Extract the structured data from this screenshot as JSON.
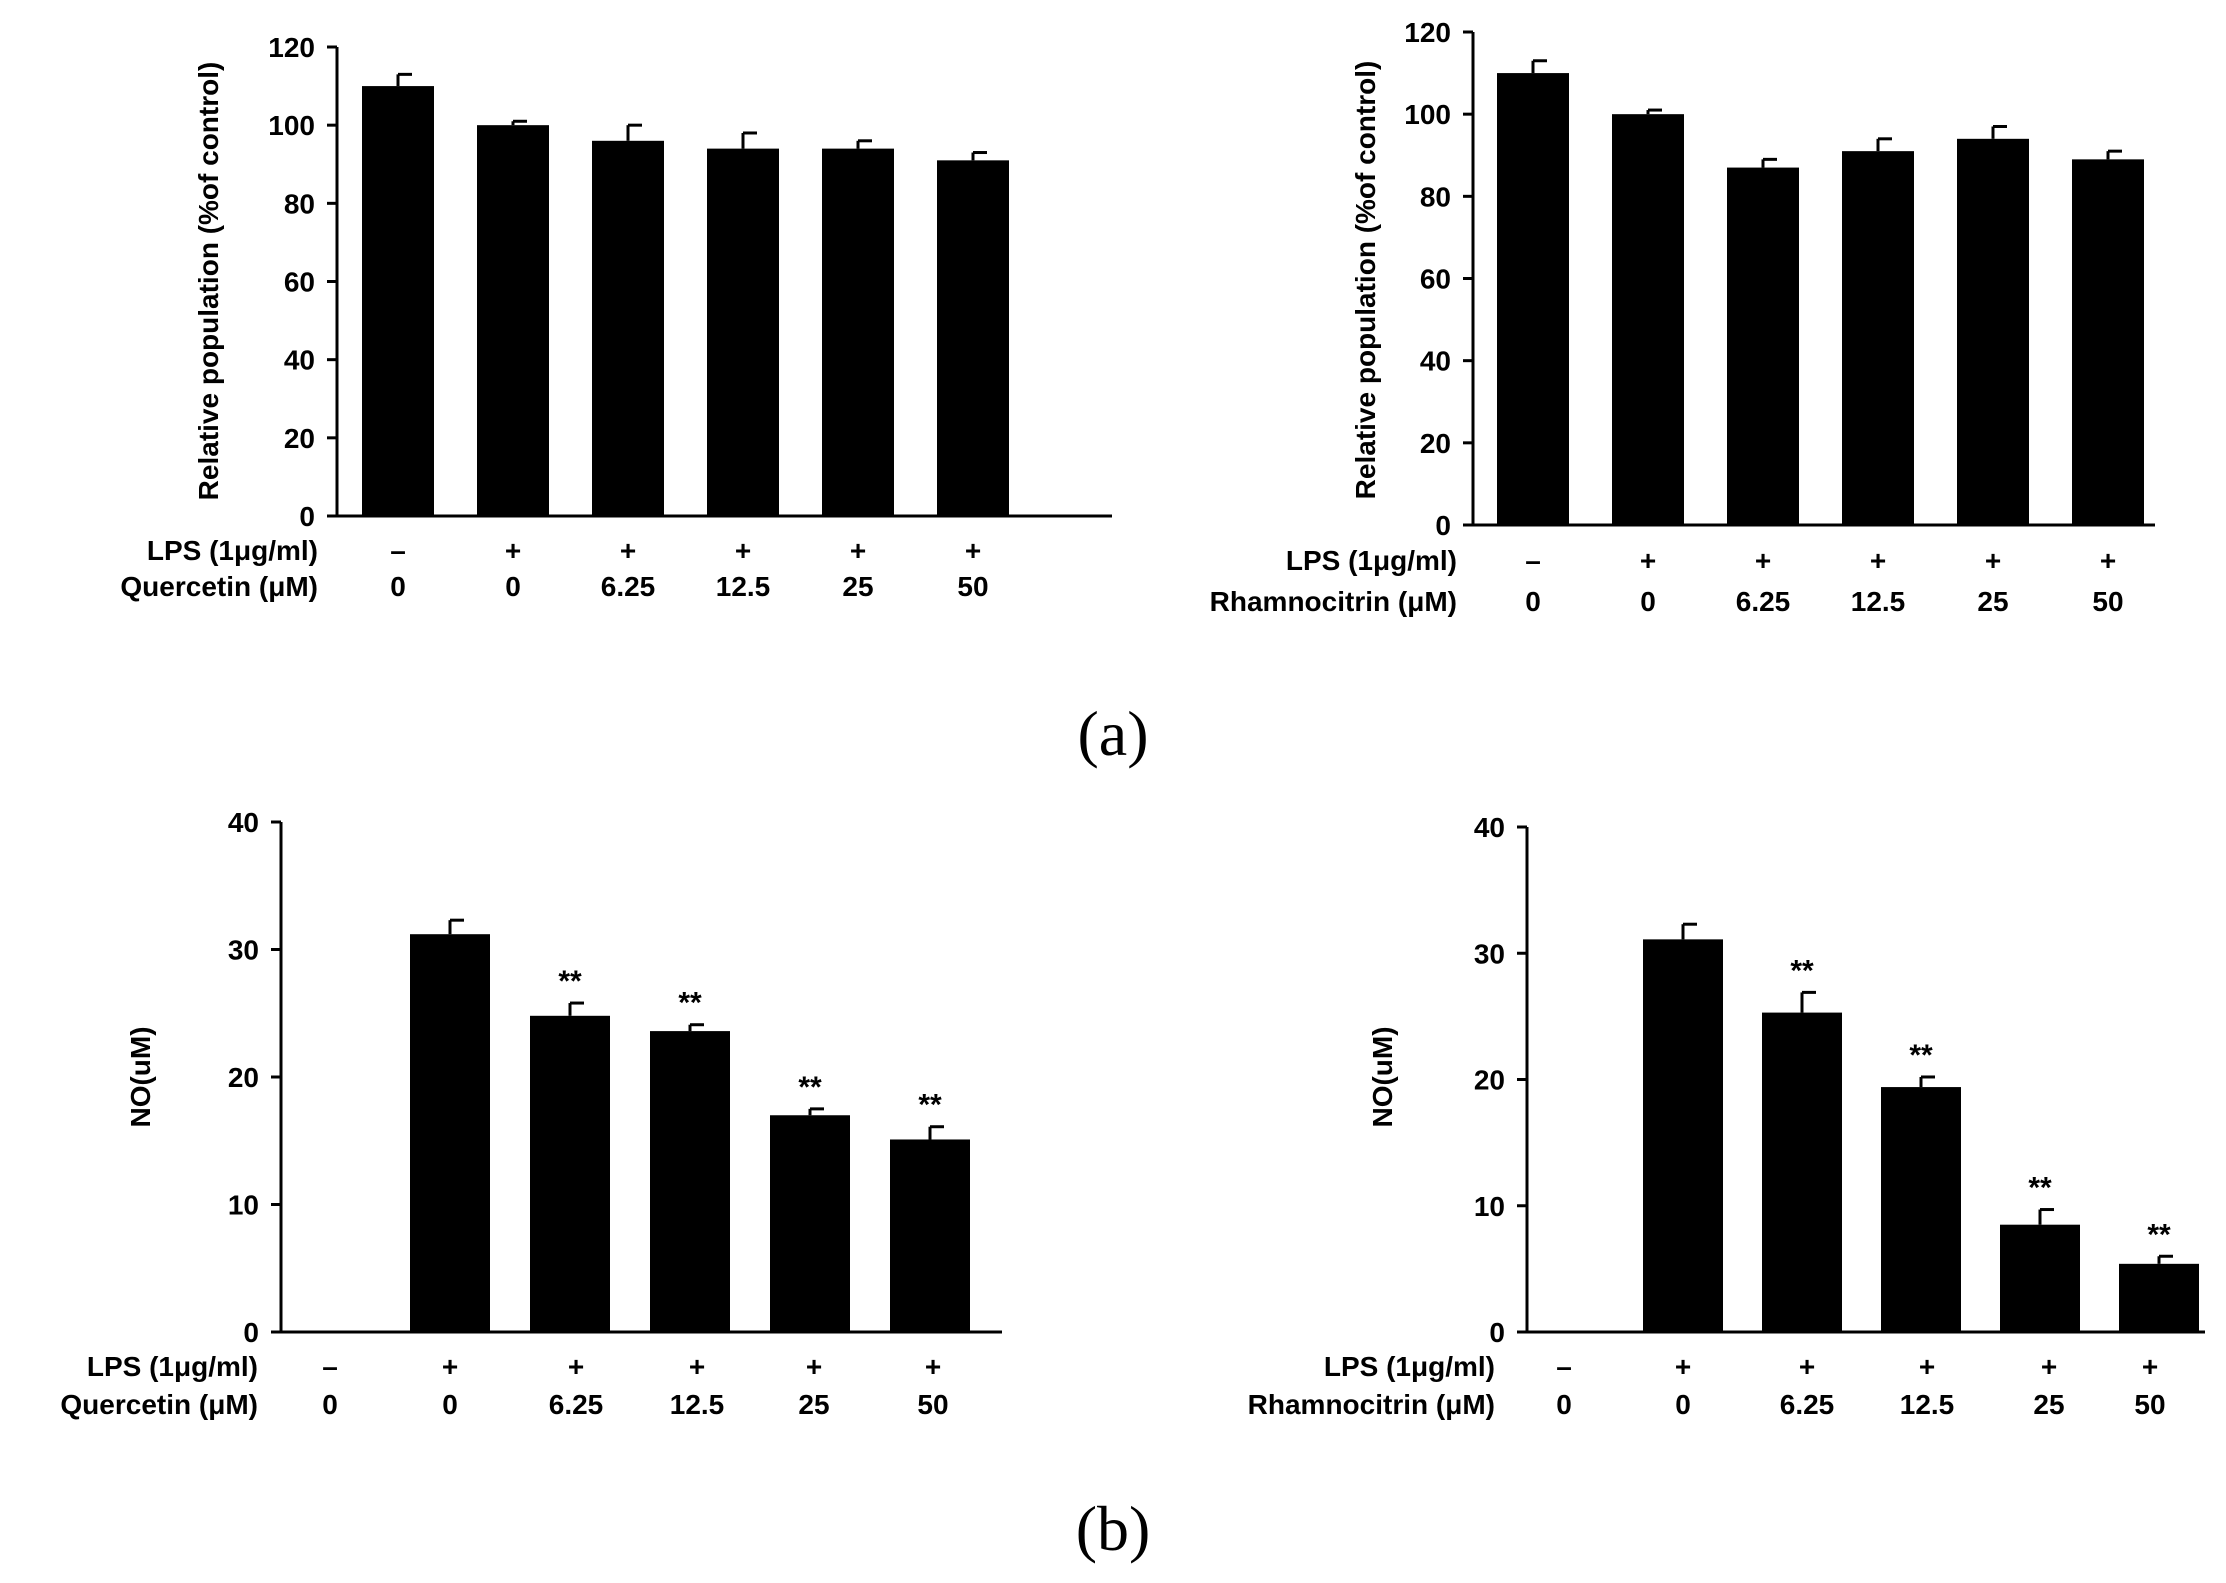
{
  "colors": {
    "bar": "#000000",
    "axis": "#000000",
    "background": "#ffffff"
  },
  "captions": {
    "a": "(a)",
    "b": "(b)"
  },
  "chart_data": [
    {
      "id": "a-left",
      "type": "bar",
      "panel": "a",
      "ylabel": "Relative population (%of control)",
      "ylim": [
        0,
        120
      ],
      "yticks": [
        0,
        20,
        40,
        60,
        80,
        100,
        120
      ],
      "row1_label": "LPS (1μg/ml)",
      "row2_label": "Quercetin (μM)",
      "row1": [
        "–",
        "+",
        "+",
        "+",
        "+",
        "+"
      ],
      "row2": [
        "0",
        "0",
        "6.25",
        "12.5",
        "25",
        "50"
      ],
      "values": [
        110,
        100,
        96,
        94,
        94,
        91
      ],
      "errors": [
        3,
        1,
        4,
        4,
        2,
        2
      ],
      "significance": [
        "",
        "",
        "",
        "",
        "",
        ""
      ]
    },
    {
      "id": "a-right",
      "type": "bar",
      "panel": "a",
      "ylabel": "Relative population (%of control)",
      "ylim": [
        0,
        120
      ],
      "yticks": [
        0,
        20,
        40,
        60,
        80,
        100,
        120
      ],
      "row1_label": "LPS (1μg/ml)",
      "row2_label": "Rhamnocitrin (μM)",
      "row1": [
        "–",
        "+",
        "+",
        "+",
        "+",
        "+"
      ],
      "row2": [
        "0",
        "0",
        "6.25",
        "12.5",
        "25",
        "50"
      ],
      "values": [
        110,
        100,
        87,
        91,
        94,
        89
      ],
      "errors": [
        3,
        1,
        2,
        3,
        3,
        2
      ],
      "significance": [
        "",
        "",
        "",
        "",
        "",
        ""
      ]
    },
    {
      "id": "b-left",
      "type": "bar",
      "panel": "b",
      "ylabel": "NO(uM)",
      "ylim": [
        0,
        40
      ],
      "yticks": [
        0,
        10,
        20,
        30,
        40
      ],
      "row1_label": "LPS (1μg/ml)",
      "row2_label": "Quercetin (μM)",
      "row1": [
        "–",
        "+",
        "+",
        "+",
        "+",
        "+"
      ],
      "row2": [
        "0",
        "0",
        "6.25",
        "12.5",
        "25",
        "50"
      ],
      "values": [
        0,
        31.2,
        24.8,
        23.6,
        17.0,
        15.1
      ],
      "errors": [
        0,
        1.1,
        1.0,
        0.5,
        0.5,
        1.0
      ],
      "significance": [
        "",
        "",
        "**",
        "**",
        "**",
        "**"
      ]
    },
    {
      "id": "b-right",
      "type": "bar",
      "panel": "b",
      "ylabel": "NO(uM)",
      "ylim": [
        0,
        40
      ],
      "yticks": [
        0,
        10,
        20,
        30,
        40
      ],
      "row1_label": "LPS (1μg/ml)",
      "row2_label": "Rhamnocitrin (μM)",
      "row1": [
        "–",
        "+",
        "+",
        "+",
        "+",
        "+"
      ],
      "row2": [
        "0",
        "0",
        "6.25",
        "12.5",
        "25",
        "50"
      ],
      "values": [
        0,
        31.1,
        25.3,
        19.4,
        8.5,
        5.4
      ],
      "errors": [
        0,
        1.2,
        1.6,
        0.8,
        1.2,
        0.6
      ],
      "significance": [
        "",
        "",
        "**",
        "**",
        "**",
        "**"
      ]
    }
  ]
}
